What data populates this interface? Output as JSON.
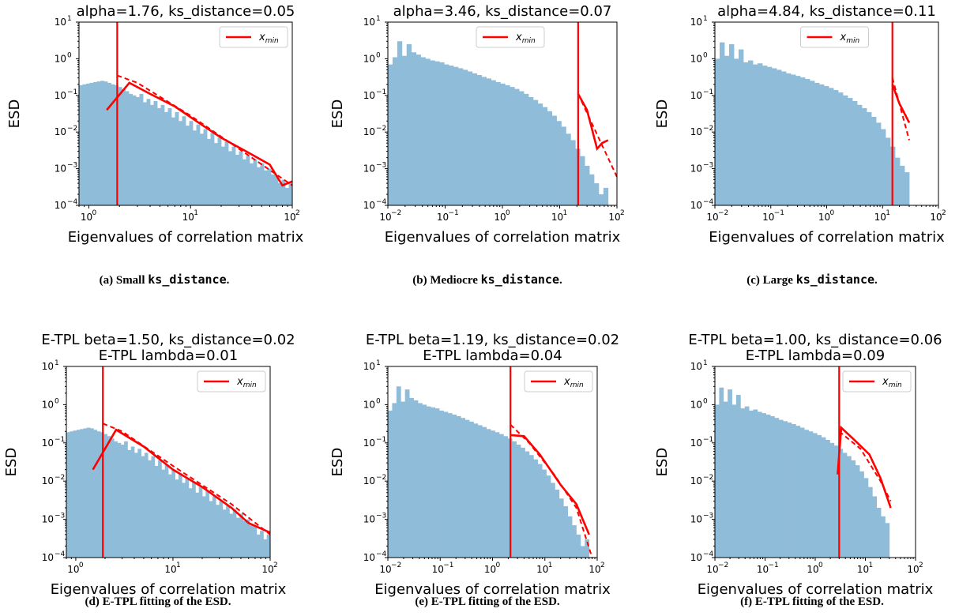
{
  "colors": {
    "bars": "#8fbcd9",
    "fit": "#ff0000"
  },
  "captions": [
    {
      "prefix": "(a) Small ",
      "code": "ks_distance",
      "suffix": "."
    },
    {
      "prefix": "(b) Mediocre ",
      "code": "ks_distance",
      "suffix": "."
    },
    {
      "prefix": "(c) Large ",
      "code": "ks_distance",
      "suffix": "."
    },
    {
      "prefix": "(d) E-TPL fitting of the ESD.",
      "code": "",
      "suffix": ""
    },
    {
      "prefix": "(e) E-TPL fitting of the ESD.",
      "code": "",
      "suffix": ""
    },
    {
      "prefix": "(f) E-TPL fitting of the ESD.",
      "code": "",
      "suffix": ""
    }
  ],
  "chart_data": [
    {
      "type": "bar",
      "title": [
        "alpha=1.76, ks_distance=0.05"
      ],
      "xlabel": "Eigenvalues of correlation matrix",
      "ylabel": "ESD",
      "xscale": "log",
      "yscale": "log",
      "xlim": [
        0.8,
        100
      ],
      "ylim": [
        0.0001,
        10
      ],
      "xticks": [
        1,
        10,
        100
      ],
      "yticks": [
        0.0001,
        0.001,
        0.01,
        0.1,
        1,
        10
      ],
      "legend": {
        "label": "x_min",
        "position": "top-right"
      },
      "xmin_line": 1.9,
      "histogram": {
        "from": 0.8,
        "to": 100,
        "values": [
          0.19,
          0.2,
          0.21,
          0.22,
          0.23,
          0.24,
          0.25,
          0.24,
          0.22,
          0.2,
          0.19,
          0.17,
          0.15,
          0.13,
          0.11,
          0.1,
          0.09,
          0.11,
          0.065,
          0.08,
          0.055,
          0.07,
          0.045,
          0.055,
          0.035,
          0.045,
          0.025,
          0.035,
          0.02,
          0.027,
          0.015,
          0.02,
          0.011,
          0.016,
          0.009,
          0.012,
          0.0065,
          0.0095,
          0.005,
          0.007,
          0.004,
          0.0055,
          0.003,
          0.004,
          0.0024,
          0.003,
          0.0018,
          0.0023,
          0.0014,
          0.0018,
          0.0011,
          0.0014,
          0.0009,
          0.001,
          0.0007,
          0.00065,
          0.0004,
          0.0005,
          0.0003,
          0.0004
        ]
      },
      "fit_solid": {
        "x": [
          1.5,
          2.5,
          4,
          7,
          12,
          20,
          35,
          60,
          80,
          100
        ],
        "y": [
          0.04,
          0.22,
          0.11,
          0.05,
          0.018,
          0.007,
          0.003,
          0.0013,
          0.00035,
          0.00045
        ]
      },
      "fit_dashed": {
        "x": [
          1.9,
          3,
          10,
          100
        ],
        "y": [
          0.35,
          0.22,
          0.028,
          0.00035
        ]
      }
    },
    {
      "type": "bar",
      "title": [
        "alpha=3.46, ks_distance=0.07"
      ],
      "xlabel": "Eigenvalues of correlation matrix",
      "ylabel": "ESD",
      "xscale": "log",
      "yscale": "log",
      "xlim": [
        0.01,
        100
      ],
      "ylim": [
        0.0001,
        10
      ],
      "xticks": [
        0.01,
        0.1,
        1,
        10,
        100
      ],
      "yticks": [
        0.0001,
        0.001,
        0.01,
        0.1,
        1,
        10
      ],
      "legend": {
        "label": "x_min",
        "position": "top-center"
      },
      "xmin_line": 21,
      "histogram": {
        "from": 0.01,
        "to": 70,
        "values": [
          0.7,
          1.1,
          3.0,
          1.2,
          2.5,
          1.5,
          1.3,
          1.1,
          1.0,
          0.9,
          0.85,
          0.8,
          0.7,
          0.65,
          0.6,
          0.55,
          0.5,
          0.45,
          0.4,
          0.36,
          0.32,
          0.29,
          0.26,
          0.23,
          0.21,
          0.19,
          0.17,
          0.15,
          0.13,
          0.11,
          0.09,
          0.075,
          0.06,
          0.048,
          0.037,
          0.028,
          0.02,
          0.014,
          0.009,
          0.006,
          0.0035,
          0.0022,
          0.0012,
          0.0007,
          0.0004,
          0.0002,
          0.0003
        ]
      },
      "fit_solid": {
        "x": [
          21,
          30,
          45,
          55,
          70
        ],
        "y": [
          0.11,
          0.04,
          0.0035,
          0.005,
          0.006
        ]
      },
      "fit_dashed": {
        "x": [
          21,
          50,
          100
        ],
        "y": [
          0.11,
          0.006,
          0.0006
        ]
      }
    },
    {
      "type": "bar",
      "title": [
        "alpha=4.84, ks_distance=0.11"
      ],
      "xlabel": "Eigenvalues of correlation matrix",
      "ylabel": "ESD",
      "xscale": "log",
      "yscale": "log",
      "xlim": [
        0.01,
        100
      ],
      "ylim": [
        0.0001,
        10
      ],
      "xticks": [
        0.01,
        0.1,
        1,
        10,
        100
      ],
      "yticks": [
        0.0001,
        0.001,
        0.01,
        0.1,
        1,
        10
      ],
      "legend": {
        "label": "x_min",
        "position": "top-center"
      },
      "xmin_line": 15,
      "histogram": {
        "from": 0.01,
        "to": 30,
        "values": [
          1.0,
          2.8,
          1.2,
          2.5,
          1.0,
          1.8,
          0.8,
          0.9,
          0.7,
          0.75,
          0.65,
          0.6,
          0.55,
          0.5,
          0.45,
          0.4,
          0.37,
          0.34,
          0.31,
          0.28,
          0.25,
          0.22,
          0.2,
          0.18,
          0.16,
          0.14,
          0.12,
          0.1,
          0.085,
          0.07,
          0.055,
          0.045,
          0.035,
          0.026,
          0.018,
          0.012,
          0.007,
          0.004,
          0.002,
          0.0012,
          0.0008
        ]
      },
      "fit_solid": {
        "x": [
          15,
          20,
          30
        ],
        "y": [
          0.2,
          0.06,
          0.018
        ]
      },
      "fit_dashed": {
        "x": [
          15,
          30
        ],
        "y": [
          0.3,
          0.006
        ]
      }
    },
    {
      "type": "bar",
      "title": [
        "E-TPL beta=1.50, ks_distance=0.02",
        "E-TPL lambda=0.01"
      ],
      "xlabel": "Eigenvalues of correlation matrix",
      "ylabel": "ESD",
      "xscale": "log",
      "yscale": "log",
      "xlim": [
        0.8,
        100
      ],
      "ylim": [
        0.0001,
        10
      ],
      "xticks": [
        1,
        10,
        100
      ],
      "yticks": [
        0.0001,
        0.001,
        0.01,
        0.1,
        1,
        10
      ],
      "legend": {
        "label": "x_min",
        "position": "top-right"
      },
      "xmin_line": 1.9,
      "histogram": {
        "from": 0.8,
        "to": 100,
        "values": [
          0.19,
          0.2,
          0.21,
          0.22,
          0.23,
          0.24,
          0.25,
          0.24,
          0.22,
          0.2,
          0.19,
          0.17,
          0.15,
          0.13,
          0.11,
          0.1,
          0.09,
          0.11,
          0.065,
          0.08,
          0.055,
          0.07,
          0.045,
          0.055,
          0.035,
          0.045,
          0.025,
          0.035,
          0.02,
          0.027,
          0.015,
          0.02,
          0.011,
          0.016,
          0.009,
          0.012,
          0.0065,
          0.0095,
          0.005,
          0.007,
          0.004,
          0.0055,
          0.003,
          0.004,
          0.0024,
          0.003,
          0.0018,
          0.0023,
          0.0014,
          0.0018,
          0.0011,
          0.0014,
          0.0009,
          0.001,
          0.0007,
          0.00065,
          0.0004,
          0.0005,
          0.0003,
          0.0004
        ]
      },
      "fit_solid": {
        "x": [
          1.5,
          2.6,
          5,
          10,
          20,
          40,
          60,
          100
        ],
        "y": [
          0.02,
          0.22,
          0.08,
          0.02,
          0.007,
          0.002,
          0.0008,
          0.00045
        ]
      },
      "fit_dashed": {
        "x": [
          1.9,
          3,
          10,
          40,
          100
        ],
        "y": [
          0.32,
          0.2,
          0.025,
          0.0025,
          0.0004
        ]
      }
    },
    {
      "type": "bar",
      "title": [
        "E-TPL beta=1.19, ks_distance=0.02",
        "E-TPL lambda=0.04"
      ],
      "xlabel": "Eigenvalues of correlation matrix",
      "ylabel": "ESD",
      "xscale": "log",
      "yscale": "log",
      "xlim": [
        0.01,
        100
      ],
      "ylim": [
        0.0001,
        10
      ],
      "xticks": [
        0.01,
        0.1,
        1,
        10,
        100
      ],
      "yticks": [
        0.0001,
        0.001,
        0.01,
        0.1,
        1,
        10
      ],
      "legend": {
        "label": "x_min",
        "position": "top-right"
      },
      "xmin_line": 2.2,
      "histogram": {
        "from": 0.01,
        "to": 70,
        "values": [
          0.7,
          1.1,
          3.0,
          1.2,
          2.5,
          1.5,
          1.3,
          1.1,
          1.0,
          0.9,
          0.85,
          0.8,
          0.7,
          0.65,
          0.6,
          0.55,
          0.5,
          0.45,
          0.4,
          0.36,
          0.32,
          0.29,
          0.26,
          0.23,
          0.21,
          0.19,
          0.17,
          0.15,
          0.13,
          0.11,
          0.09,
          0.075,
          0.06,
          0.048,
          0.037,
          0.028,
          0.02,
          0.014,
          0.009,
          0.006,
          0.0035,
          0.0022,
          0.0012,
          0.0007,
          0.0004,
          0.0002,
          0.0003
        ]
      },
      "fit_solid": {
        "x": [
          2.2,
          4,
          8,
          20,
          40,
          70
        ],
        "y": [
          0.16,
          0.15,
          0.05,
          0.008,
          0.0025,
          0.0004
        ]
      },
      "fit_dashed": {
        "x": [
          2.2,
          5,
          15,
          40,
          80
        ],
        "y": [
          0.3,
          0.1,
          0.015,
          0.002,
          0.0001
        ]
      }
    },
    {
      "type": "bar",
      "title": [
        "E-TPL beta=1.00, ks_distance=0.06",
        "E-TPL lambda=0.09"
      ],
      "xlabel": "Eigenvalues of correlation matrix",
      "ylabel": "ESD",
      "xscale": "log",
      "yscale": "log",
      "xlim": [
        0.01,
        100
      ],
      "ylim": [
        0.0001,
        10
      ],
      "xticks": [
        0.01,
        0.1,
        1,
        10,
        100
      ],
      "yticks": [
        0.0001,
        0.001,
        0.01,
        0.1,
        1,
        10
      ],
      "legend": {
        "label": "x_min",
        "position": "top-right"
      },
      "xmin_line": 3,
      "histogram": {
        "from": 0.01,
        "to": 30,
        "values": [
          1.0,
          2.8,
          1.2,
          2.5,
          1.0,
          1.8,
          0.8,
          0.9,
          0.7,
          0.75,
          0.65,
          0.6,
          0.55,
          0.5,
          0.45,
          0.4,
          0.37,
          0.34,
          0.31,
          0.28,
          0.25,
          0.22,
          0.2,
          0.18,
          0.16,
          0.14,
          0.12,
          0.1,
          0.085,
          0.07,
          0.055,
          0.045,
          0.035,
          0.026,
          0.018,
          0.012,
          0.007,
          0.004,
          0.002,
          0.0012,
          0.0008
        ]
      },
      "fit_solid": {
        "x": [
          2.8,
          3.3,
          6,
          12,
          20,
          32
        ],
        "y": [
          0.015,
          0.25,
          0.12,
          0.05,
          0.012,
          0.002
        ]
      },
      "fit_dashed": {
        "x": [
          3,
          8,
          20,
          32
        ],
        "y": [
          0.2,
          0.07,
          0.01,
          0.003
        ]
      }
    }
  ]
}
